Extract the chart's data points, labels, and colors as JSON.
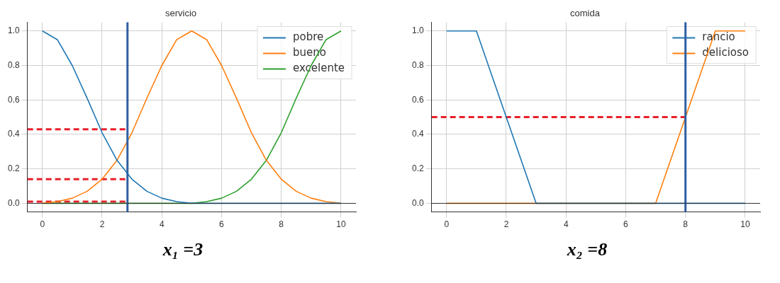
{
  "chart_data": [
    {
      "type": "line",
      "title": "servicio",
      "x": [
        0,
        0.5,
        1,
        1.5,
        2,
        2.5,
        3,
        3.5,
        4,
        4.5,
        5,
        5.5,
        6,
        6.5,
        7,
        7.5,
        8,
        8.5,
        9,
        9.5,
        10
      ],
      "series": [
        {
          "name": "pobre",
          "color": "#1f77b4",
          "values": [
            1,
            0.95,
            0.8,
            0.61,
            0.41,
            0.25,
            0.14,
            0.07,
            0.03,
            0.01,
            0,
            0,
            0,
            0,
            0,
            0,
            0,
            0,
            0,
            0,
            0
          ]
        },
        {
          "name": "bueno",
          "color": "#ff7f0e",
          "values": [
            0,
            0.01,
            0.03,
            0.07,
            0.14,
            0.25,
            0.41,
            0.61,
            0.8,
            0.95,
            1,
            0.95,
            0.8,
            0.61,
            0.41,
            0.25,
            0.14,
            0.07,
            0.03,
            0.01,
            0
          ]
        },
        {
          "name": "excelente",
          "color": "#2ca02c",
          "values": [
            0,
            0,
            0,
            0,
            0,
            0,
            0,
            0,
            0,
            0,
            0,
            0.01,
            0.03,
            0.07,
            0.14,
            0.25,
            0.41,
            0.61,
            0.8,
            0.95,
            1
          ]
        },
        {
          "color": "#e8202a",
          "line_style": "dashed",
          "x": [
            -0.5,
            2.8
          ],
          "values": [
            0.43,
            0.43
          ]
        },
        {
          "color": "#e8202a",
          "line_style": "dashed",
          "x": [
            -0.5,
            2.8
          ],
          "values": [
            0.14,
            0.14
          ]
        },
        {
          "color": "#e8202a",
          "line_style": "dashed",
          "x": [
            -0.5,
            2.8
          ],
          "values": [
            0.01,
            0.01
          ]
        }
      ],
      "ref_lines": [
        {
          "axis": "x",
          "value": 2.85,
          "color": "#2e5fa3"
        },
        {
          "axis": "y",
          "value": 0,
          "color": "#333333"
        }
      ],
      "xlim": [
        -0.5,
        10.5
      ],
      "xticks": [
        0,
        2,
        4,
        6,
        8,
        10
      ],
      "ylim": [
        -0.05,
        1.05
      ],
      "yticks": [
        {
          "value": 0,
          "label": "0.0"
        },
        {
          "value": 0.2,
          "label": "0.2"
        },
        {
          "value": 0.4,
          "label": "0.4"
        },
        {
          "value": 0.6,
          "label": "0.6"
        },
        {
          "value": 0.8,
          "label": "0.8"
        },
        {
          "value": 1,
          "label": "1.0"
        }
      ],
      "grid": true,
      "legend": "top right",
      "annotations": [
        "x₁ =3"
      ]
    },
    {
      "type": "line",
      "title": "comida",
      "x": [
        0,
        1,
        3,
        7,
        9,
        10
      ],
      "series": [
        {
          "name": "rancio",
          "color": "#1f77b4",
          "values": [
            1,
            1,
            0,
            0,
            0,
            0
          ]
        },
        {
          "name": "delicioso",
          "color": "#ff7f0e",
          "values": [
            0,
            0,
            0,
            0,
            1,
            1
          ]
        },
        {
          "color": "#e8202a",
          "line_style": "dashed",
          "x": [
            -0.5,
            8
          ],
          "values": [
            0.5,
            0.5
          ]
        }
      ],
      "ref_lines": [
        {
          "axis": "x",
          "value": 8,
          "color": "#2e5fa3"
        },
        {
          "axis": "y",
          "value": 0,
          "color": "#333333"
        }
      ],
      "xlim": [
        -0.5,
        10.5
      ],
      "xticks": [
        0,
        2,
        4,
        6,
        8,
        10
      ],
      "ylim": [
        -0.05,
        1.05
      ],
      "yticks": [
        {
          "value": 0,
          "label": "0.0"
        },
        {
          "value": 0.2,
          "label": "0.2"
        },
        {
          "value": 0.4,
          "label": "0.4"
        },
        {
          "value": 0.6,
          "label": "0.6"
        },
        {
          "value": 0.8,
          "label": "0.8"
        },
        {
          "value": 1,
          "label": "1.0"
        }
      ],
      "grid": true,
      "legend": "top right",
      "annotations": [
        "x₂ =8"
      ]
    }
  ]
}
